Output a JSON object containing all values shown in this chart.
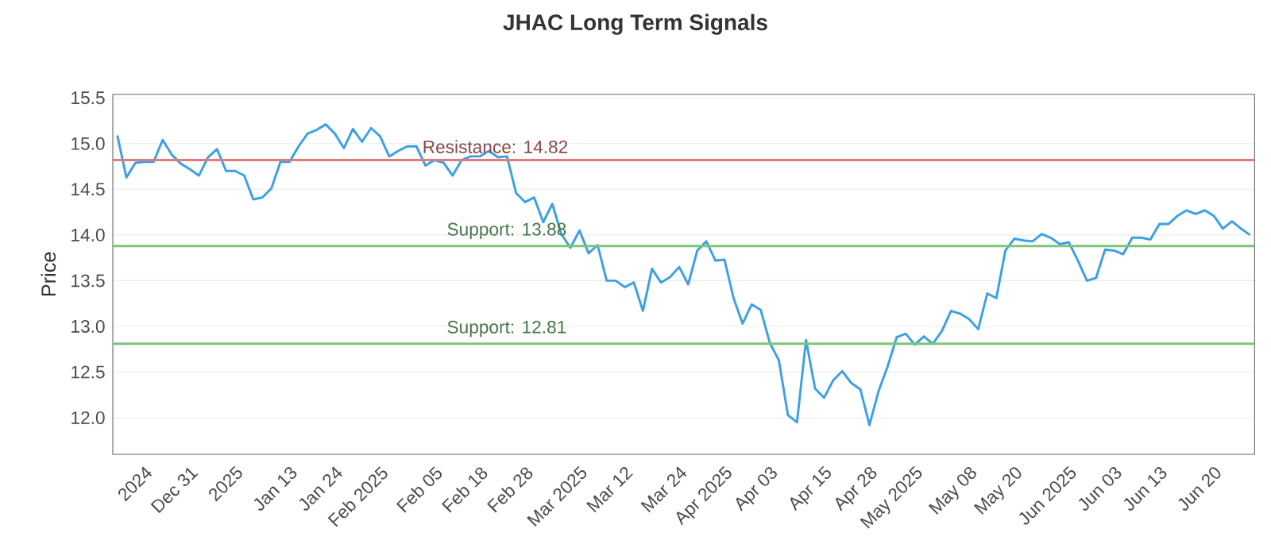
{
  "chart_data": {
    "type": "line",
    "title": "JHAC Long Term Signals",
    "ylabel": "Price",
    "categories": [
      null,
      null,
      null,
      "2024",
      null,
      null,
      null,
      null,
      "Dec 31",
      null,
      null,
      null,
      null,
      "2025",
      null,
      null,
      null,
      null,
      null,
      "Jan 13",
      null,
      null,
      null,
      null,
      "Jan 24",
      null,
      null,
      null,
      null,
      "Feb 2025",
      null,
      null,
      null,
      null,
      null,
      "Feb 05",
      null,
      null,
      null,
      null,
      "Feb 18",
      null,
      null,
      null,
      null,
      "Feb 28",
      null,
      null,
      null,
      null,
      null,
      "Mar 2025",
      null,
      null,
      null,
      null,
      "Mar 12",
      null,
      null,
      null,
      null,
      null,
      "Mar 24",
      null,
      null,
      null,
      null,
      "Apr 2025",
      null,
      null,
      null,
      null,
      "Apr 03",
      null,
      null,
      null,
      null,
      null,
      "Apr 15",
      null,
      null,
      null,
      null,
      "Apr 28",
      null,
      null,
      null,
      null,
      "May 2025",
      null,
      null,
      null,
      null,
      null,
      "May 08",
      null,
      null,
      null,
      null,
      "May 20",
      null,
      null,
      null,
      null,
      null,
      "Jun 2025",
      null,
      null,
      null,
      null,
      "Jun 03",
      null,
      null,
      null,
      null,
      "Jun 13",
      null,
      null,
      null,
      null,
      null,
      "Jun 20",
      null,
      null,
      null,
      null
    ],
    "series": [
      {
        "color": "#3ba0e6",
        "values": [
          15.09,
          14.63,
          14.79,
          14.8,
          14.8,
          15.04,
          14.88,
          14.78,
          14.72,
          14.65,
          14.85,
          14.94,
          14.7,
          14.7,
          14.65,
          14.39,
          14.41,
          14.51,
          14.8,
          14.8,
          14.97,
          15.11,
          15.15,
          15.21,
          15.11,
          14.95,
          15.16,
          15.02,
          15.17,
          15.08,
          14.86,
          14.92,
          14.97,
          14.97,
          14.76,
          14.82,
          14.79,
          14.65,
          14.82,
          14.86,
          14.86,
          14.92,
          14.85,
          14.86,
          14.46,
          14.36,
          14.41,
          14.14,
          14.34,
          14.01,
          13.86,
          14.05,
          13.8,
          13.89,
          13.5,
          13.5,
          13.43,
          13.48,
          13.17,
          13.63,
          13.48,
          13.54,
          13.65,
          13.46,
          13.83,
          13.93,
          13.72,
          13.73,
          13.31,
          13.03,
          13.24,
          13.18,
          12.82,
          12.63,
          12.03,
          11.95,
          12.85,
          12.32,
          12.22,
          12.41,
          12.51,
          12.38,
          12.31,
          11.92,
          12.29,
          12.56,
          12.88,
          12.92,
          12.8,
          12.89,
          12.81,
          12.95,
          13.17,
          13.14,
          13.08,
          12.97,
          13.36,
          13.31,
          13.83,
          13.96,
          13.94,
          13.93,
          14.01,
          13.97,
          13.9,
          13.92,
          13.72,
          13.5,
          13.53,
          13.84,
          13.83,
          13.79,
          13.97,
          13.97,
          13.95,
          14.12,
          14.12,
          14.21,
          14.27,
          14.23,
          14.27,
          14.21,
          14.07,
          14.15,
          14.07,
          14.0
        ]
      }
    ],
    "ylim": [
      11.6,
      15.54
    ],
    "yticks": [
      {
        "value": 12,
        "label": "12.0"
      },
      12.5,
      {
        "value": 13,
        "label": "13.0"
      },
      13.5,
      {
        "value": 14,
        "label": "14.0"
      },
      14.5,
      {
        "value": 15,
        "label": "15.0"
      },
      15.5
    ],
    "grid": "y",
    "marker": "none",
    "line_style": "solid",
    "ref_lines": [
      {
        "axis": "y",
        "value": 14.82,
        "label": "Resistance: 14.82",
        "color": "#e07b7b"
      },
      {
        "axis": "y",
        "value": 13.88,
        "label": "Support: 13.88",
        "color": "#7cc47c"
      },
      {
        "axis": "y",
        "value": 12.81,
        "label": "Support: 12.81",
        "color": "#7cc47c"
      }
    ]
  }
}
